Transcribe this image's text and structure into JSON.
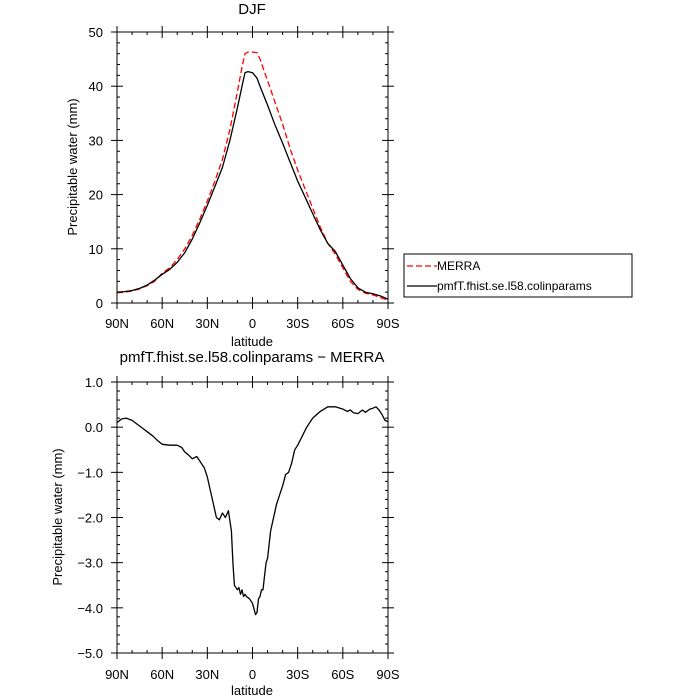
{
  "chart_data": [
    {
      "type": "line",
      "title": "DJF",
      "xlabel": "latitude",
      "ylabel": "Precipitable water (mm)",
      "xlim": [
        90,
        -90
      ],
      "ylim": [
        0,
        50
      ],
      "x_tick_values": [
        90,
        60,
        30,
        0,
        -30,
        -60,
        -90
      ],
      "x_tick_labels": [
        "90N",
        "60N",
        "30N",
        "0",
        "30S",
        "60S",
        "90S"
      ],
      "y_ticks": [
        0,
        10,
        20,
        30,
        40,
        50
      ],
      "y_tick_labels": [
        "0",
        "10",
        "20",
        "30",
        "40",
        "50"
      ],
      "grid": false,
      "legend_position": "outside-right",
      "series": [
        {
          "name": "MERRA",
          "color": "#ff0000",
          "dash": "dashed",
          "x": [
            90,
            85,
            80,
            75,
            70,
            65,
            60,
            55,
            50,
            45,
            40,
            35,
            30,
            25,
            20,
            15,
            10,
            7,
            5,
            3,
            0,
            -3,
            -5,
            -10,
            -15,
            -20,
            -25,
            -30,
            -35,
            -40,
            -45,
            -50,
            -55,
            -60,
            -65,
            -70,
            -75,
            -80,
            -85,
            -90
          ],
          "y": [
            1.9,
            2.0,
            2.2,
            2.6,
            3.2,
            4.0,
            5.5,
            6.5,
            8.0,
            10.0,
            12.5,
            15.5,
            18.8,
            22.5,
            26.5,
            32.0,
            39.0,
            43.5,
            46.0,
            46.3,
            46.3,
            46.2,
            45.0,
            41.0,
            37.0,
            33.0,
            28.5,
            24.5,
            21.0,
            17.5,
            14.0,
            11.0,
            9.0,
            6.5,
            4.0,
            2.5,
            1.8,
            1.5,
            1.0,
            0.5
          ]
        },
        {
          "name": "pmfT.fhist.se.l58.colinparams",
          "color": "#000000",
          "dash": "solid",
          "x": [
            90,
            85,
            80,
            75,
            70,
            65,
            60,
            55,
            50,
            45,
            40,
            35,
            30,
            25,
            20,
            15,
            10,
            7,
            5,
            3,
            0,
            -3,
            -5,
            -10,
            -15,
            -20,
            -25,
            -30,
            -35,
            -40,
            -45,
            -50,
            -55,
            -60,
            -65,
            -70,
            -75,
            -80,
            -85,
            -90
          ],
          "y": [
            2.0,
            2.1,
            2.3,
            2.7,
            3.3,
            4.2,
            5.3,
            6.2,
            7.5,
            9.3,
            11.8,
            14.8,
            18.0,
            21.5,
            25.0,
            30.0,
            36.0,
            40.0,
            42.5,
            42.7,
            42.5,
            41.5,
            40.0,
            36.5,
            32.8,
            29.5,
            26.0,
            22.5,
            19.5,
            16.5,
            13.5,
            11.0,
            9.5,
            7.0,
            4.5,
            2.8,
            2.0,
            1.7,
            1.3,
            0.7
          ]
        }
      ]
    },
    {
      "type": "line",
      "title": "pmfT.fhist.se.l58.colinparams − MERRA",
      "xlabel": "latitude",
      "ylabel": "Precipitable water (mm)",
      "xlim": [
        90,
        -90
      ],
      "ylim": [
        -5,
        1
      ],
      "x_tick_values": [
        90,
        60,
        30,
        0,
        -30,
        -60,
        -90
      ],
      "x_tick_labels": [
        "90N",
        "60N",
        "30N",
        "0",
        "30S",
        "60S",
        "90S"
      ],
      "y_ticks": [
        1,
        0,
        -1,
        -2,
        -3,
        -4,
        -5
      ],
      "y_tick_labels": [
        "1.0",
        "0.0",
        "−1.0",
        "−2.0",
        "−3.0",
        "−4.0",
        "−5.0"
      ],
      "grid": false,
      "series": [
        {
          "color": "#000000",
          "dash": "solid",
          "x": [
            90,
            87,
            84,
            80,
            76,
            72,
            70,
            66,
            63,
            60,
            55,
            50,
            47,
            45,
            43,
            40,
            37,
            35,
            32,
            30,
            28,
            26,
            24,
            22,
            20,
            18,
            16,
            14,
            13,
            12,
            10,
            9,
            8,
            7,
            6,
            5,
            4,
            2,
            0,
            -2,
            -3,
            -4,
            -5,
            -6,
            -7,
            -8,
            -9,
            -10,
            -12,
            -14,
            -16,
            -18,
            -20,
            -22,
            -24,
            -26,
            -28,
            -30,
            -33,
            -36,
            -40,
            -45,
            -50,
            -55,
            -60,
            -63,
            -65,
            -67,
            -70,
            -73,
            -75,
            -78,
            -80,
            -82,
            -84,
            -86,
            -88,
            -90
          ],
          "y": [
            0.1,
            0.18,
            0.2,
            0.15,
            0.05,
            -0.05,
            -0.1,
            -0.2,
            -0.3,
            -0.38,
            -0.4,
            -0.4,
            -0.45,
            -0.55,
            -0.6,
            -0.7,
            -0.65,
            -0.75,
            -0.9,
            -1.1,
            -1.4,
            -1.7,
            -2.0,
            -2.05,
            -1.9,
            -2.0,
            -1.85,
            -2.3,
            -3.0,
            -3.5,
            -3.6,
            -3.55,
            -3.7,
            -3.6,
            -3.75,
            -3.7,
            -3.75,
            -3.8,
            -3.9,
            -4.15,
            -4.1,
            -3.8,
            -3.75,
            -3.6,
            -3.6,
            -3.3,
            -3.0,
            -2.9,
            -2.3,
            -2.0,
            -1.7,
            -1.5,
            -1.3,
            -1.05,
            -1.0,
            -0.8,
            -0.5,
            -0.4,
            -0.2,
            0.0,
            0.2,
            0.35,
            0.45,
            0.45,
            0.4,
            0.35,
            0.38,
            0.32,
            0.3,
            0.38,
            0.33,
            0.4,
            0.42,
            0.45,
            0.38,
            0.28,
            0.15,
            0.12
          ]
        }
      ]
    }
  ]
}
